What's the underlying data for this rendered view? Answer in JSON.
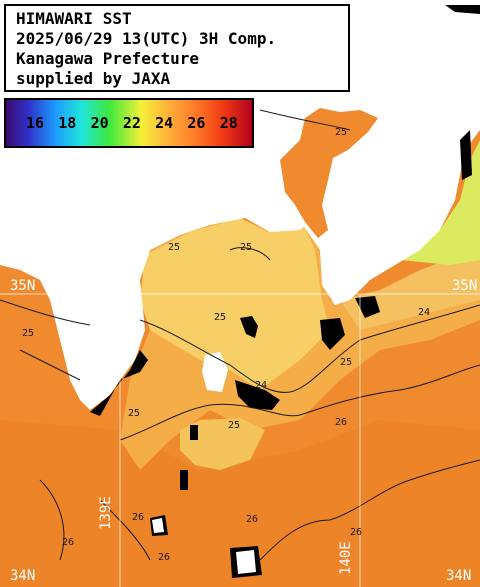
{
  "title": {
    "line1": "HIMAWARI SST",
    "line2": "2025/06/29 13(UTC) 3H Comp.",
    "line3": "Kanagawa Prefecture",
    "line4": "supplied by JAXA"
  },
  "legend": {
    "labels": [
      "16",
      "18",
      "20",
      "22",
      "24",
      "26",
      "28"
    ],
    "unit": ""
  },
  "grid": {
    "lat_labels": [
      "35N",
      "35N",
      "34N",
      "34N"
    ],
    "lon_labels": [
      "139E",
      "140E"
    ]
  },
  "contours": [
    "25",
    "25",
    "25",
    "25",
    "25",
    "24",
    "24",
    "25",
    "25",
    "25",
    "26",
    "26",
    "26",
    "26",
    "26",
    "26"
  ],
  "colors": {
    "land": "#ffffff",
    "cloud": "#000000",
    "sea_warm": "#f08a2e",
    "sea_mid": "#f5b24a",
    "sea_cool": "#f7d46a",
    "sea_green": "#d6ec5a"
  }
}
